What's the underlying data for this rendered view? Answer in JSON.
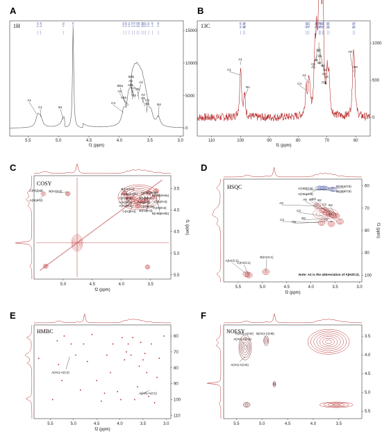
{
  "chart_data": [
    {
      "panel": "A",
      "type": "line",
      "nucleus": "1H",
      "xlabel": "f1 (ppm)",
      "x_ticks": [
        "5.5",
        "5.0",
        "4.5",
        "4.0",
        "3.5",
        "3.0"
      ],
      "y_ticks": [
        "0",
        "5000",
        "10000",
        "15000"
      ],
      "xlim": [
        5.8,
        2.95
      ],
      "ylim": [
        -1200,
        16500
      ],
      "peak_list": [
        "5.34",
        "5.29",
        "4.92",
        "4.76",
        "3.93",
        "3.89",
        "3.84",
        "3.79",
        "3.75",
        "3.71",
        "3.68",
        "3.63",
        "3.60",
        "3.57",
        "3.52",
        "3.46",
        "3.36"
      ],
      "peaks": [
        [
          5.34,
          1800
        ],
        [
          5.29,
          1300
        ],
        [
          4.92,
          1000
        ],
        [
          4.76,
          15500
        ],
        [
          3.93,
          2000
        ],
        [
          3.85,
          3200
        ],
        [
          3.79,
          4700
        ],
        [
          3.75,
          4300
        ],
        [
          3.71,
          4500
        ],
        [
          3.67,
          4000
        ],
        [
          3.63,
          4000
        ],
        [
          3.59,
          3000
        ],
        [
          3.55,
          2200
        ],
        [
          3.48,
          1600
        ],
        [
          3.36,
          1400
        ]
      ],
      "annotations": [
        "A1",
        "C1",
        "B1",
        "C4",
        "B6a",
        "A3",
        "A6a",
        "C3",
        "B6b",
        "A5",
        "A6b",
        "C5",
        "A4",
        "B5",
        "A2",
        "C6",
        "C2",
        "B2",
        "B4"
      ]
    },
    {
      "panel": "B",
      "type": "line",
      "nucleus": "13C",
      "xlabel": "f1 (ppm)",
      "x_ticks": [
        "110",
        "100",
        "90",
        "80",
        "70",
        "60"
      ],
      "y_ticks": [
        "0",
        "500",
        "1000"
      ],
      "xlim": [
        115,
        55
      ],
      "ylim": [
        -250,
        1300
      ],
      "peak_list": [
        "99.95",
        "98.92",
        "98.58",
        "77.22",
        "76.81",
        "76.24",
        "73.88",
        "73.58",
        "72.79",
        "72.42",
        "72.12",
        "71.53",
        "71.34",
        "69.86",
        "69.34",
        "60.91",
        "60.49"
      ],
      "peaks": [
        [
          99.95,
          700
        ],
        [
          98.6,
          280
        ],
        [
          77.2,
          380
        ],
        [
          76.2,
          480
        ],
        [
          74.2,
          700
        ],
        [
          73.6,
          880
        ],
        [
          72.8,
          1000
        ],
        [
          72.4,
          900
        ],
        [
          72.1,
          850
        ],
        [
          71.5,
          720
        ],
        [
          71.3,
          680
        ],
        [
          69.9,
          480
        ],
        [
          69.3,
          440
        ],
        [
          60.9,
          620
        ],
        [
          60.5,
          560
        ]
      ],
      "annotations": [
        "C1",
        "A1",
        "B1",
        "C4",
        "A4",
        "A3",
        "C3",
        "A5",
        "B3",
        "C5",
        "B2",
        "B5",
        "A2",
        "C2",
        "B4",
        "C6",
        "A6",
        "B6"
      ]
    },
    {
      "panel": "C",
      "type": "heatmap",
      "experiment": "COSY",
      "xlabel": "f2 (ppm)",
      "ylabel": "f1 (ppm)",
      "x_ticks": [
        "5.0",
        "4.5",
        "4.0",
        "3.5"
      ],
      "y_ticks": [
        "3.5",
        "4.0",
        "4.5",
        "5.0",
        "5.5"
      ],
      "xlim": [
        5.5,
        3.15
      ],
      "ylim": [
        3.2,
        5.6
      ],
      "cross_peaks": [
        [
          5.34,
          3.62
        ],
        [
          4.92,
          3.62
        ],
        [
          3.95,
          3.6
        ],
        [
          3.9,
          3.68
        ],
        [
          3.88,
          3.75
        ],
        [
          3.8,
          3.71
        ],
        [
          3.75,
          3.8
        ],
        [
          3.72,
          3.9
        ],
        [
          3.68,
          3.79
        ],
        [
          3.62,
          3.8
        ],
        [
          3.56,
          3.75
        ],
        [
          3.52,
          3.6
        ],
        [
          3.44,
          3.7
        ],
        [
          3.4,
          3.55
        ],
        [
          5.3,
          5.3
        ],
        [
          4.76,
          4.76
        ],
        [
          3.55,
          5.32
        ]
      ],
      "annotations": [
        "C(H1/H2)",
        "A(H1/H2)",
        "B(H1/H2)",
        "B(H1/H4)",
        "A(H6a/H6b)",
        "C(H4/H5)",
        "A(H3/H4)",
        "A(H2/H3)",
        "C(H3/H4)",
        "A(H6b/H6a)",
        "B(H5/H6)",
        "A(H5/H6)",
        "C(H5/H6)",
        "B(H2/H3)",
        "B(H6b/H6a)",
        "C(H2/H3)",
        "A(H4/H3)",
        "B(H6a/H6b)"
      ]
    },
    {
      "panel": "D",
      "type": "heatmap",
      "experiment": "HSQC",
      "xlabel": "f2 (ppm)",
      "ylabel": "f1 (ppm)",
      "x_ticks": [
        "5.5",
        "5.0",
        "4.5",
        "4.0",
        "3.5",
        "3.0"
      ],
      "y_ticks": [
        "60",
        "70",
        "80",
        "90",
        "100"
      ],
      "xlim": [
        5.8,
        2.95
      ],
      "ylim": [
        57,
        103
      ],
      "cross_peaks": [
        [
          3.72,
          61.0
        ],
        [
          3.82,
          61.0
        ],
        [
          3.55,
          61.5
        ],
        [
          3.87,
          69.0
        ],
        [
          3.75,
          71.0
        ],
        [
          3.68,
          72.0
        ],
        [
          3.62,
          72.5
        ],
        [
          3.55,
          73.0
        ],
        [
          3.48,
          73.5
        ],
        [
          3.4,
          76.0
        ],
        [
          3.78,
          76.5
        ],
        [
          3.58,
          77.0
        ],
        [
          5.33,
          99.5
        ],
        [
          5.28,
          100.0
        ],
        [
          4.93,
          98.5
        ]
      ],
      "annotations": [
        "B(H6a/C6)",
        "B(H6b/C6)",
        "A(H6b/C6)",
        "A(H6a/C6)",
        "A3",
        "A5",
        "B5",
        "C6",
        "B2",
        "C2",
        "B4",
        "A2",
        "C4",
        "C5",
        "C3",
        "B3",
        "A4",
        "A(H1/C1)",
        "C(H1/C1)",
        "B(H1/C1)"
      ],
      "note": "Note: A2 is the abbreviation of A(H2/C2)."
    },
    {
      "panel": "E",
      "type": "scatter",
      "experiment": "HMBC",
      "xlabel": "f2 (ppm)",
      "ylabel": "",
      "x_ticks": [
        "5.5",
        "5.0",
        "4.5",
        "4.0",
        "3.5",
        "3.0"
      ],
      "y_ticks": [
        "60",
        "70",
        "80",
        "90",
        "100",
        "110"
      ],
      "xlim": [
        5.85,
        2.9
      ],
      "ylim": [
        53,
        112
      ],
      "cross_peaks": [
        [
          5.62,
          56
        ],
        [
          5.35,
          63
        ],
        [
          5.32,
          78
        ],
        [
          5.2,
          60
        ],
        [
          5.05,
          65
        ],
        [
          4.95,
          72
        ],
        [
          4.85,
          94
        ],
        [
          4.78,
          65
        ],
        [
          4.6,
          59
        ],
        [
          4.5,
          88
        ],
        [
          4.4,
          101
        ],
        [
          4.28,
          72
        ],
        [
          4.15,
          65
        ],
        [
          4.05,
          95
        ],
        [
          3.95,
          61
        ],
        [
          3.9,
          75
        ],
        [
          3.86,
          70
        ],
        [
          3.82,
          65
        ],
        [
          3.76,
          72
        ],
        [
          3.72,
          61
        ],
        [
          3.68,
          100
        ],
        [
          3.62,
          92
        ],
        [
          3.55,
          64
        ],
        [
          3.5,
          75
        ],
        [
          3.46,
          71
        ],
        [
          3.42,
          83
        ],
        [
          3.38,
          98
        ],
        [
          3.32,
          65
        ],
        [
          3.25,
          102
        ],
        [
          3.15,
          74
        ],
        [
          3.05,
          60
        ],
        [
          5.25,
          88
        ],
        [
          4.7,
          76
        ],
        [
          4.2,
          83
        ],
        [
          3.98,
          100
        ],
        [
          3.58,
          79
        ],
        [
          5.45,
          100
        ],
        [
          4.33,
          96
        ],
        [
          3.2,
          86
        ],
        [
          5.75,
          74
        ]
      ],
      "annotations": [
        "A(H1)-A(C4)",
        "A(H4)-A(C1)"
      ]
    },
    {
      "panel": "F",
      "type": "heatmap",
      "experiment": "NOESY",
      "xlabel": "",
      "ylabel": "",
      "x_ticks": [
        "5.5",
        "5.0",
        "4.5",
        "4.0",
        "3.5"
      ],
      "y_ticks": [
        "3.5",
        "4.0",
        "4.5",
        "5.0",
        "5.5"
      ],
      "xlim": [
        5.75,
        3.05
      ],
      "ylim": [
        3.2,
        5.7
      ],
      "cross_peaks": [
        [
          5.33,
          3.8
        ],
        [
          4.92,
          3.62
        ],
        [
          5.3,
          5.33
        ],
        [
          4.76,
          4.78
        ],
        [
          3.7,
          3.6
        ],
        [
          3.55,
          5.33
        ]
      ],
      "annotations": [
        "C(H1)-A(H4)",
        "B(H1)-C(H6)",
        "A(H1)-A(H4)",
        "A(H1)-C(H4)"
      ]
    }
  ]
}
